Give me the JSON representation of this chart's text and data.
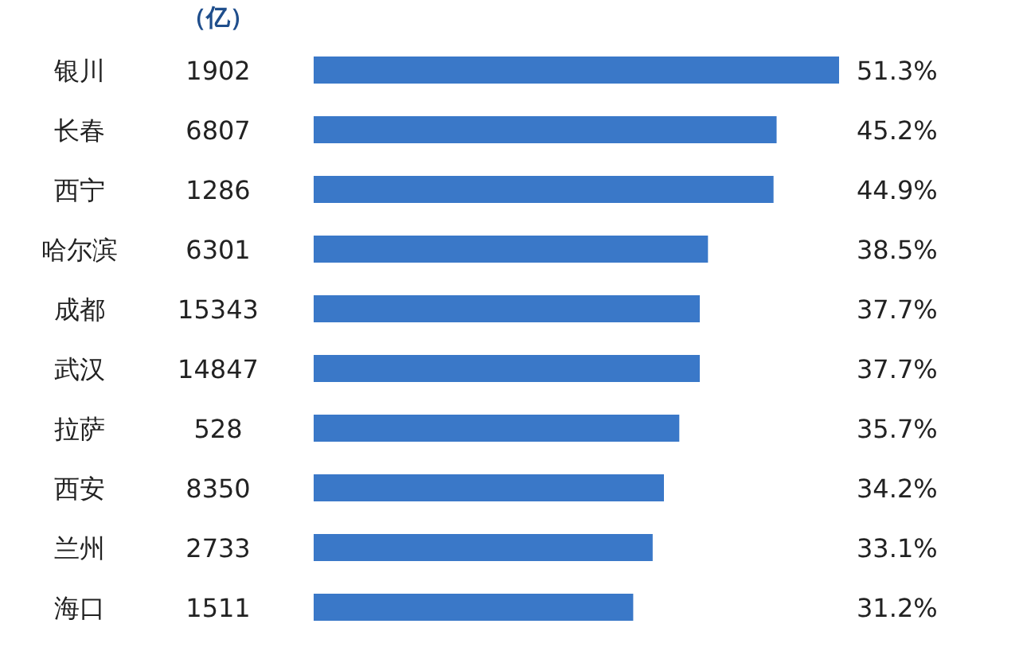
{
  "chart_data": {
    "type": "bar",
    "orientation": "horizontal",
    "categories": [
      "银川",
      "长春",
      "西宁",
      "哈尔滨",
      "成都",
      "武汉",
      "拉萨",
      "西安",
      "兰州",
      "海口"
    ],
    "values": [
      51.3,
      45.2,
      44.9,
      38.5,
      37.7,
      37.7,
      35.7,
      34.2,
      33.1,
      31.2
    ],
    "value_labels": [
      "51.3%",
      "45.2%",
      "44.9%",
      "38.5%",
      "37.7%",
      "37.7%",
      "35.7%",
      "34.2%",
      "33.1%",
      "31.2%"
    ],
    "color": "#3a78c8",
    "annotations": [
      "（亿）",
      "1902",
      "6807",
      "1286",
      "6301",
      "15343",
      "14847",
      "528",
      "8350",
      "2733",
      "1511"
    ]
  }
}
